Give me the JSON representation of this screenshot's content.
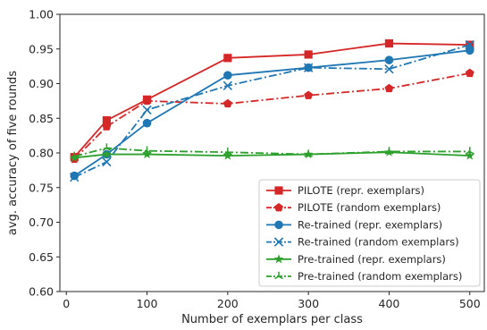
{
  "chart_data": {
    "type": "line",
    "title": "",
    "xlabel": "Number of exemplars per class",
    "ylabel": "avg. accuracy of five rounds",
    "xlim": [
      -8,
      518
    ],
    "ylim": [
      0.6,
      1.0
    ],
    "xticks": [
      0,
      100,
      200,
      300,
      400,
      500
    ],
    "yticks": [
      0.6,
      0.65,
      0.7,
      0.75,
      0.8,
      0.85,
      0.9,
      0.95,
      1.0
    ],
    "x": [
      10,
      50,
      100,
      200,
      300,
      400,
      500
    ],
    "grid": false,
    "legend_position": "lower-right",
    "series": [
      {
        "name": "PILOTE (repr. exemplars)",
        "color": "#d62728",
        "line": "solid",
        "marker": "square",
        "values": [
          0.794,
          0.847,
          0.877,
          0.937,
          0.942,
          0.958,
          0.956
        ]
      },
      {
        "name": "PILOTE (random exemplars)",
        "color": "#d62728",
        "line": "dashdot",
        "marker": "pentagon",
        "values": [
          0.791,
          0.838,
          0.875,
          0.871,
          0.883,
          0.893,
          0.915
        ]
      },
      {
        "name": "Re-trained (repr. exemplars)",
        "color": "#1f77b4",
        "line": "solid",
        "marker": "circle",
        "values": [
          0.767,
          0.798,
          0.843,
          0.912,
          0.923,
          0.934,
          0.948
        ]
      },
      {
        "name": "Re-trained (random exemplars)",
        "color": "#1f77b4",
        "line": "dashdot",
        "marker": "x",
        "values": [
          0.765,
          0.787,
          0.862,
          0.897,
          0.923,
          0.921,
          0.956
        ]
      },
      {
        "name": "Pre-trained (repr. exemplars)",
        "color": "#2ca02c",
        "line": "solid",
        "marker": "star",
        "values": [
          0.793,
          0.798,
          0.798,
          0.796,
          0.798,
          0.801,
          0.796
        ]
      },
      {
        "name": "Pre-trained (random exemplars)",
        "color": "#2ca02c",
        "line": "dashdot",
        "marker": "tri-up",
        "values": [
          0.795,
          0.807,
          0.803,
          0.801,
          0.798,
          0.802,
          0.802
        ]
      }
    ]
  }
}
